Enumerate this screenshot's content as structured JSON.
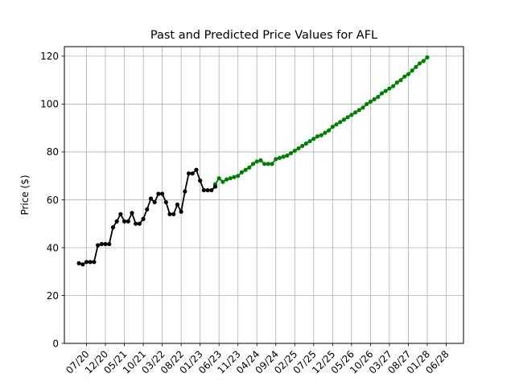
{
  "chart_data": {
    "type": "line",
    "title": "Past and Predicted Price Values for AFL",
    "xlabel": "",
    "ylabel": "Price ($)",
    "ylim": [
      0,
      124
    ],
    "yticks": [
      0,
      20,
      40,
      60,
      80,
      100,
      120
    ],
    "xticks": [
      "07/20",
      "12/20",
      "05/21",
      "10/21",
      "03/22",
      "08/22",
      "01/23",
      "06/23",
      "11/23",
      "04/24",
      "09/24",
      "02/25",
      "07/25",
      "12/25",
      "05/26",
      "10/26",
      "03/27",
      "08/27",
      "01/28",
      "06/28"
    ],
    "grid": true,
    "colors": {
      "past": "#000000",
      "predicted": "#008000",
      "grid": "#b0b0b0"
    },
    "series": [
      {
        "values": [
          33.5,
          33.0,
          34.0,
          34.0,
          34.0,
          41.0,
          41.5,
          41.5,
          41.5,
          48.5,
          51.0,
          54.0,
          51.0,
          51.0,
          54.5,
          50.0,
          50.0,
          52.0,
          56.0,
          60.5,
          59.0,
          62.5,
          62.5,
          59.0,
          54.0,
          54.0,
          58.0,
          55.0,
          63.5,
          71.0,
          71.0,
          72.5,
          68.0,
          64.0,
          64.0,
          64.0,
          65.5
        ]
      },
      {
        "values": [
          66.5,
          69.0,
          67.5,
          68.5,
          69.0,
          69.5,
          70.0,
          71.5,
          72.5,
          73.5,
          75.0,
          76.0,
          76.5,
          75.0,
          75.0,
          75.0,
          77.0,
          77.5,
          78.0,
          78.5,
          79.5,
          80.5,
          81.5,
          82.5,
          83.5,
          84.5,
          85.5,
          86.5,
          87.0,
          88.0,
          89.0,
          90.5,
          91.5,
          92.5,
          93.5,
          94.5,
          95.5,
          96.5,
          97.5,
          98.5,
          100.0,
          101.0,
          102.0,
          103.0,
          104.5,
          105.5,
          106.5,
          107.5,
          109.0,
          110.0,
          111.5,
          112.5,
          114.0,
          115.5,
          117.0,
          118.0,
          119.5
        ]
      }
    ]
  }
}
